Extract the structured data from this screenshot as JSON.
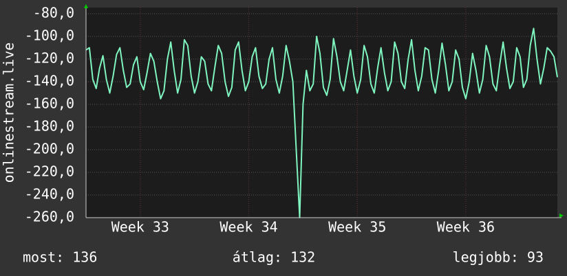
{
  "chart_data": {
    "type": "line",
    "y_label": "onlinestream.live",
    "ylim": [
      -260,
      -80
    ],
    "yticks": [
      {
        "value": -80,
        "label": "-80,0"
      },
      {
        "value": -100,
        "label": "-100,0"
      },
      {
        "value": -120,
        "label": "-120,0"
      },
      {
        "value": -140,
        "label": "-140,0"
      },
      {
        "value": -160,
        "label": "-160,0"
      },
      {
        "value": -180,
        "label": "-180,0"
      },
      {
        "value": -200,
        "label": "-200,0"
      },
      {
        "value": -220,
        "label": "-220,0"
      },
      {
        "value": -240,
        "label": "-240,0"
      },
      {
        "value": -260,
        "label": "-260,0"
      }
    ],
    "xlim": [
      0,
      139
    ],
    "xticks": [
      {
        "value": 16,
        "label": "Week 33"
      },
      {
        "value": 48,
        "label": "Week 34"
      },
      {
        "value": 80,
        "label": "Week 35"
      },
      {
        "value": 112,
        "label": "Week 36"
      }
    ],
    "grid": true,
    "color": "#7ff5c0",
    "values": [
      -112,
      -110,
      -138,
      -146,
      -128,
      -117,
      -138,
      -150,
      -135,
      -116,
      -110,
      -130,
      -145,
      -142,
      -125,
      -118,
      -140,
      -147,
      -132,
      -115,
      -122,
      -140,
      -155,
      -148,
      -120,
      -105,
      -130,
      -150,
      -138,
      -103,
      -108,
      -135,
      -150,
      -140,
      -118,
      -122,
      -142,
      -148,
      -127,
      -108,
      -115,
      -140,
      -153,
      -145,
      -112,
      -105,
      -130,
      -148,
      -140,
      -118,
      -110,
      -135,
      -146,
      -142,
      -120,
      -110,
      -138,
      -150,
      -135,
      -108,
      -122,
      -140,
      -200,
      -260,
      -160,
      -130,
      -148,
      -142,
      -100,
      -115,
      -145,
      -152,
      -138,
      -102,
      -118,
      -140,
      -148,
      -130,
      -112,
      -135,
      -150,
      -138,
      -108,
      -118,
      -142,
      -150,
      -128,
      -110,
      -132,
      -148,
      -140,
      -105,
      -115,
      -140,
      -146,
      -120,
      -103,
      -130,
      -148,
      -135,
      -110,
      -112,
      -138,
      -150,
      -130,
      -106,
      -125,
      -148,
      -140,
      -112,
      -120,
      -145,
      -155,
      -140,
      -115,
      -130,
      -150,
      -138,
      -108,
      -118,
      -142,
      -148,
      -125,
      -105,
      -128,
      -146,
      -140,
      -110,
      -118,
      -145,
      -138,
      -108,
      -93,
      -120,
      -142,
      -128,
      -110,
      -113,
      -118,
      -136
    ],
    "stats": [
      "most: 136",
      "átlag: 132",
      "legjobb: 93"
    ]
  }
}
